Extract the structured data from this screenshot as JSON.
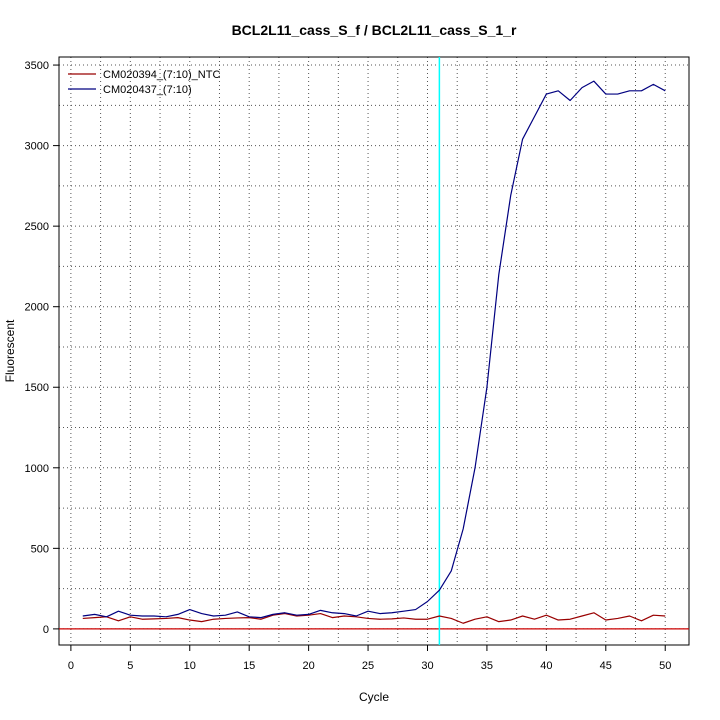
{
  "chart_data": {
    "type": "line",
    "title": "BCL2L11_cass_S_f / BCL2L11_cass_S_1_r",
    "xlabel": "Cycle",
    "ylabel": "Fluorescent",
    "xlim": [
      -1,
      52
    ],
    "ylim": [
      -100,
      3550
    ],
    "xticks": [
      0,
      5,
      10,
      15,
      20,
      25,
      30,
      35,
      40,
      45,
      50
    ],
    "yticks": [
      0,
      500,
      1000,
      1500,
      2000,
      2500,
      3000,
      3500
    ],
    "grid": true,
    "legend_position": "top-left",
    "threshold_cycle": 31,
    "threshold_color": "#00ffff",
    "baseline_y": 0,
    "baseline_color": "#cc0000",
    "x": [
      1,
      2,
      3,
      4,
      5,
      6,
      7,
      8,
      9,
      10,
      11,
      12,
      13,
      14,
      15,
      16,
      17,
      18,
      19,
      20,
      21,
      22,
      23,
      24,
      25,
      26,
      27,
      28,
      29,
      30,
      31,
      32,
      33,
      34,
      35,
      36,
      37,
      38,
      39,
      40,
      41,
      42,
      43,
      44,
      45,
      46,
      47,
      48,
      49,
      50
    ],
    "series": [
      {
        "name": "CM020394_(7:10)_NTC",
        "color": "#990000",
        "values": [
          65,
          70,
          75,
          50,
          75,
          60,
          62,
          65,
          70,
          55,
          45,
          60,
          65,
          68,
          70,
          60,
          85,
          95,
          80,
          85,
          95,
          70,
          80,
          75,
          65,
          60,
          62,
          68,
          60,
          60,
          80,
          65,
          35,
          60,
          75,
          45,
          55,
          80,
          60,
          85,
          55,
          60,
          80,
          100,
          55,
          65,
          80,
          50,
          85,
          80
        ]
      },
      {
        "name": "CM020437_(7:10)",
        "color": "#000080",
        "values": [
          80,
          90,
          75,
          110,
          85,
          80,
          80,
          75,
          90,
          120,
          95,
          80,
          85,
          105,
          75,
          70,
          90,
          100,
          85,
          90,
          115,
          100,
          95,
          80,
          110,
          95,
          100,
          110,
          120,
          170,
          240,
          360,
          620,
          1000,
          1500,
          2200,
          2690,
          3040,
          3180,
          3320,
          3340,
          3280,
          3360,
          3400,
          3320,
          3320,
          3340,
          3340,
          3380,
          3340
        ]
      }
    ]
  }
}
